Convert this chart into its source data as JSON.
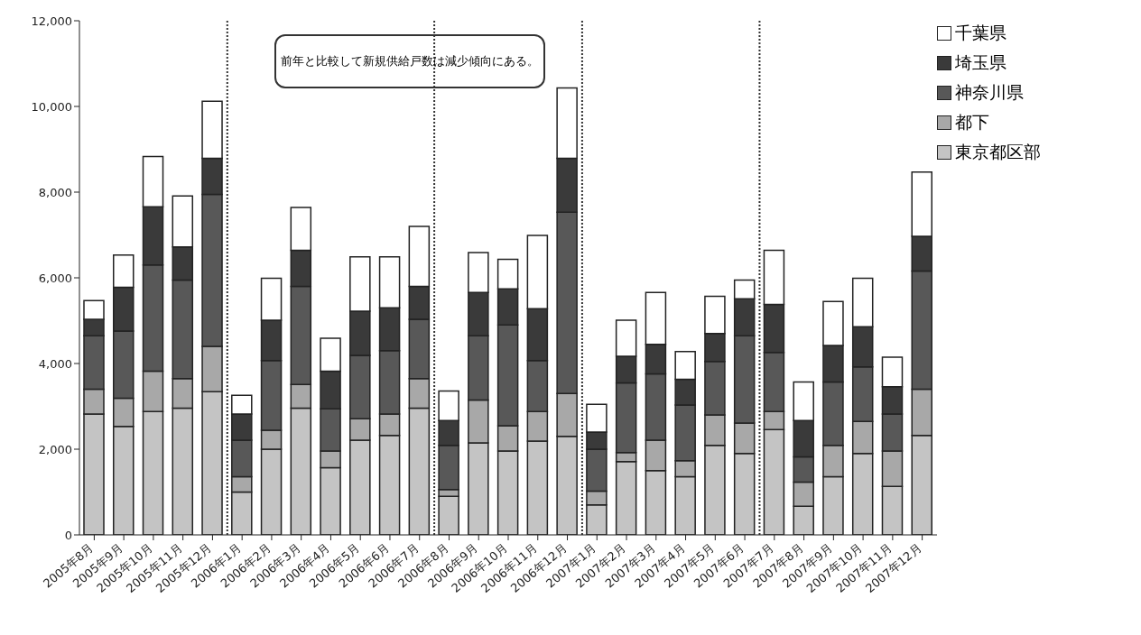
{
  "chart_data": {
    "type": "bar",
    "stacked": true,
    "categories": [
      "2005年8月",
      "2005年9月",
      "2005年10月",
      "2005年11月",
      "2005年12月",
      "2006年1月",
      "2006年2月",
      "2006年3月",
      "2006年4月",
      "2006年5月",
      "2006年6月",
      "2006年7月",
      "2006年8月",
      "2006年9月",
      "2006年10月",
      "2006年11月",
      "2006年12月",
      "2007年1月",
      "2007年2月",
      "2007年3月",
      "2007年4月",
      "2007年5月",
      "2007年6月",
      "2007年7月",
      "2007年8月",
      "2007年9月",
      "2007年10月",
      "2007年11月",
      "2007年12月"
    ],
    "series": [
      {
        "name": "東京都区部",
        "color": "#c4c4c4",
        "values": [
          2820,
          2530,
          2880,
          2960,
          3340,
          1000,
          2000,
          2960,
          1570,
          2210,
          2320,
          2960,
          900,
          2150,
          1960,
          2190,
          2300,
          700,
          1710,
          1500,
          1360,
          2090,
          1900,
          2460,
          670,
          1360,
          1900,
          1130,
          2320
        ]
      },
      {
        "name": "都下",
        "color": "#a8a8a8",
        "values": [
          580,
          660,
          940,
          690,
          1060,
          360,
          440,
          550,
          390,
          500,
          500,
          690,
          160,
          1000,
          590,
          690,
          1000,
          320,
          210,
          710,
          370,
          710,
          710,
          420,
          560,
          730,
          750,
          830,
          1080
        ]
      },
      {
        "name": "神奈川県",
        "color": "#585858",
        "values": [
          1250,
          1570,
          2480,
          2300,
          3550,
          850,
          1630,
          2290,
          980,
          1480,
          1480,
          1380,
          1030,
          1500,
          2350,
          1190,
          4230,
          980,
          1630,
          1550,
          1300,
          1250,
          2040,
          1380,
          590,
          1480,
          1270,
          860,
          2760
        ]
      },
      {
        "name": "埼玉県",
        "color": "#3a3a3a",
        "values": [
          380,
          1020,
          1360,
          770,
          840,
          610,
          940,
          840,
          880,
          1030,
          1000,
          770,
          580,
          1010,
          840,
          1210,
          1260,
          400,
          620,
          690,
          600,
          650,
          860,
          1120,
          850,
          850,
          940,
          640,
          810
        ]
      },
      {
        "name": "千葉県",
        "color": "#ffffff",
        "values": [
          440,
          750,
          1170,
          1190,
          1330,
          440,
          980,
          1000,
          770,
          1270,
          1190,
          1400,
          690,
          930,
          690,
          1710,
          1640,
          650,
          840,
          1210,
          650,
          870,
          440,
          1260,
          900,
          1030,
          1130,
          690,
          1500
        ]
      }
    ],
    "ylim": [
      0,
      12000
    ],
    "yticks": [
      0,
      {
        "value": 2000,
        "label": "2,000"
      },
      {
        "value": 4000,
        "label": "4,000"
      },
      {
        "value": 6000,
        "label": "6,000"
      },
      {
        "value": 8000,
        "label": "8,000"
      },
      {
        "value": 10000,
        "label": "10,000"
      },
      {
        "value": 12000,
        "label": "12,000"
      }
    ],
    "grid": false,
    "legend": "top right",
    "annotations": [
      "前年と比較して新規供給戸数は減少傾向にある。"
    ]
  }
}
